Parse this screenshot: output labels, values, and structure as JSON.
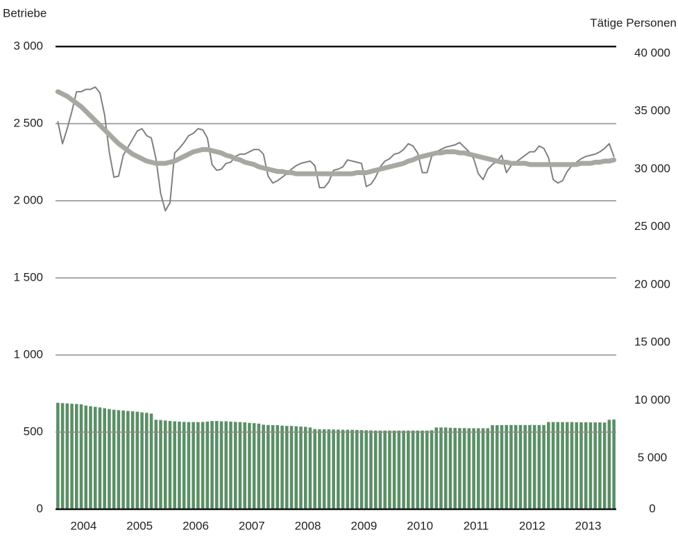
{
  "chart_data": {
    "type": "bar",
    "y_label": "Betriebe",
    "y2_label": "Tätige Personen",
    "categories": [
      "2004",
      null,
      null,
      null,
      null,
      null,
      null,
      null,
      null,
      null,
      null,
      null,
      "2005",
      null,
      null,
      null,
      null,
      null,
      null,
      null,
      null,
      null,
      null,
      null,
      "2006",
      null,
      null,
      null,
      null,
      null,
      null,
      null,
      null,
      null,
      null,
      null,
      "2007",
      null,
      null,
      null,
      null,
      null,
      null,
      null,
      null,
      null,
      null,
      null,
      "2008",
      null,
      null,
      null,
      null,
      null,
      null,
      null,
      null,
      null,
      null,
      null,
      "2009",
      null,
      null,
      null,
      null,
      null,
      null,
      null,
      null,
      null,
      null,
      null,
      "2010",
      null,
      null,
      null,
      null,
      null,
      null,
      null,
      null,
      null,
      null,
      null,
      "2011",
      null,
      null,
      null,
      null,
      null,
      null,
      null,
      null,
      null,
      null,
      null,
      "2012",
      null,
      null,
      null,
      null,
      null,
      null,
      null,
      null,
      null,
      null,
      null,
      "2013",
      null,
      null,
      null,
      null,
      null,
      null,
      null,
      null,
      null,
      null,
      null
    ],
    "series": [
      {
        "type": "bar",
        "color": "#5b8f66",
        "values": [
          690,
          688,
          686,
          684,
          682,
          680,
          672,
          668,
          664,
          660,
          655,
          650,
          645,
          642,
          640,
          637,
          635,
          632,
          628,
          625,
          620,
          580,
          578,
          575,
          572,
          570,
          568,
          566,
          565,
          565,
          565,
          566,
          568,
          572,
          572,
          570,
          570,
          568,
          566,
          565,
          563,
          560,
          558,
          555,
          548,
          546,
          545,
          545,
          542,
          540,
          540,
          538,
          536,
          534,
          530,
          520,
          518,
          518,
          518,
          517,
          516,
          515,
          515,
          515,
          514,
          513,
          512,
          511,
          510,
          510,
          510,
          510,
          510,
          510,
          510,
          510,
          510,
          510,
          510,
          510,
          512,
          530,
          530,
          530,
          528,
          527,
          526,
          526,
          525,
          525,
          525,
          525,
          525,
          545,
          545,
          545,
          546,
          546,
          546,
          546,
          546,
          546,
          546,
          546,
          546,
          565,
          565,
          565,
          565,
          565,
          565,
          564,
          564,
          564,
          563,
          563,
          563,
          562,
          580,
          582
        ]
      },
      {
        "type": "line",
        "axis": "y2",
        "color": "#7f7f7f",
        "values": [
          33500,
          31600,
          32900,
          34400,
          36100,
          36100,
          36300,
          36300,
          36500,
          36000,
          34100,
          30900,
          28700,
          28800,
          30600,
          31300,
          32000,
          32700,
          32900,
          32300,
          32100,
          30300,
          27300,
          25800,
          26500,
          30800,
          31200,
          31700,
          32300,
          32500,
          32900,
          32800,
          32100,
          29800,
          29300,
          29400,
          29900,
          30000,
          30500,
          30700,
          30700,
          30900,
          31100,
          31100,
          30700,
          28800,
          28200,
          28400,
          28700,
          29000,
          29400,
          29700,
          29900,
          30000,
          30100,
          29700,
          27800,
          27800,
          28300,
          29300,
          29400,
          29600,
          30200,
          30100,
          30000,
          29900,
          27900,
          28100,
          28700,
          29600,
          30100,
          30300,
          30700,
          30800,
          31100,
          31600,
          31400,
          30800,
          29100,
          29100,
          30500,
          30900,
          31100,
          31300,
          31400,
          31500,
          31700,
          31300,
          30900,
          30300,
          29000,
          28500,
          29400,
          29800,
          30100,
          30600,
          29100,
          29700,
          30000,
          30300,
          30600,
          30900,
          30900,
          31400,
          31200,
          30400,
          28500,
          28200,
          28400,
          29200,
          29700,
          30000,
          30300,
          30500,
          30600,
          30700,
          30900,
          31200,
          31600,
          30500
        ]
      },
      {
        "type": "line",
        "axis": "y2",
        "color": "#a8a8a3",
        "values": [
          36100,
          35900,
          35700,
          35400,
          35100,
          34800,
          34400,
          34000,
          33600,
          33200,
          32800,
          32400,
          32000,
          31600,
          31300,
          31000,
          30700,
          30500,
          30300,
          30100,
          30000,
          29900,
          29900,
          29900,
          30000,
          30100,
          30300,
          30500,
          30700,
          30900,
          31000,
          31100,
          31100,
          31000,
          30900,
          30800,
          30600,
          30500,
          30300,
          30200,
          30000,
          29900,
          29800,
          29600,
          29500,
          29400,
          29300,
          29200,
          29200,
          29100,
          29100,
          29000,
          29000,
          29000,
          29000,
          29000,
          29000,
          29000,
          29000,
          29000,
          29000,
          29000,
          29000,
          29000,
          29100,
          29100,
          29100,
          29200,
          29300,
          29400,
          29500,
          29600,
          29700,
          29800,
          29900,
          30100,
          30200,
          30400,
          30500,
          30600,
          30700,
          30800,
          30800,
          30900,
          30900,
          30900,
          30800,
          30800,
          30700,
          30600,
          30500,
          30400,
          30300,
          30200,
          30100,
          30000,
          30000,
          29900,
          29900,
          29900,
          29900,
          29800,
          29800,
          29800,
          29800,
          29800,
          29800,
          29800,
          29800,
          29800,
          29800,
          29800,
          29900,
          29900,
          29900,
          30000,
          30000,
          30100,
          30100,
          30200
        ]
      }
    ],
    "ylim": [
      0,
      3000
    ],
    "yticks": [
      0,
      500,
      {
        "value": 1000,
        "label": "1 000"
      },
      {
        "value": 1500,
        "label": "1 500"
      },
      {
        "value": 2000,
        "label": "2 000"
      },
      {
        "value": 2500,
        "label": "2 500"
      },
      {
        "value": 3000,
        "label": "3 000"
      }
    ],
    "y2lim": [
      0,
      40000
    ],
    "y2ticks": [
      0,
      {
        "value": 5000,
        "label": "5 000"
      },
      {
        "value": 10000,
        "label": "10 000"
      },
      {
        "value": 15000,
        "label": "15 000"
      },
      {
        "value": 20000,
        "label": "20 000"
      },
      {
        "value": 25000,
        "label": "25 000"
      },
      {
        "value": 30000,
        "label": "30 000"
      },
      {
        "value": 35000,
        "label": "35 000"
      },
      {
        "value": 40000,
        "label": "40 000"
      }
    ],
    "grid": true
  }
}
